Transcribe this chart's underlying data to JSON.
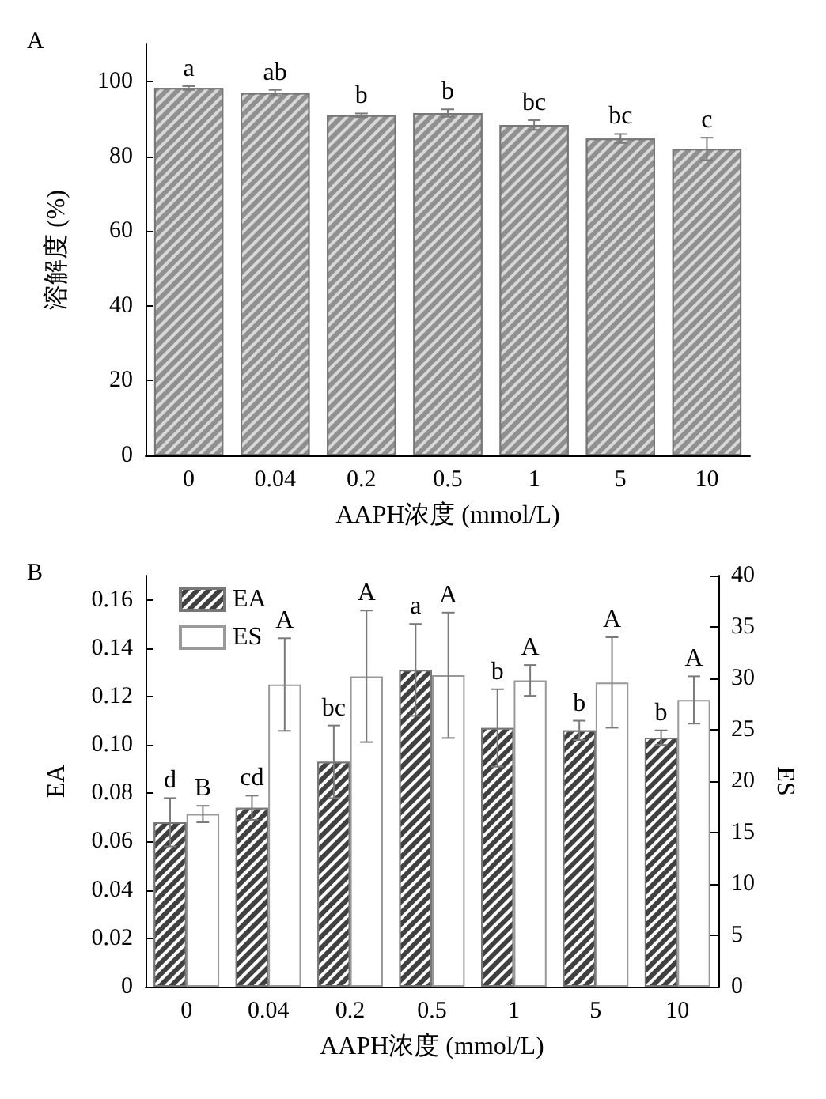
{
  "chart_data": [
    {
      "type": "bar",
      "title": "A",
      "xlabel": "AAPH浓度 (mmol/L)",
      "ylabel": "溶解度 (%)",
      "categories": [
        "0",
        "0.04",
        "0.2",
        "0.5",
        "1",
        "5",
        "10"
      ],
      "series": [
        {
          "color": "#909090",
          "values": [
            98.3,
            97,
            91,
            91.6,
            88.4,
            84.8,
            82
          ],
          "errors": [
            0.5,
            0.8,
            0.5,
            1.0,
            1.3,
            1.2,
            3.0
          ],
          "value_labels": [
            "a",
            "ab",
            "b",
            "b",
            "bc",
            "bc",
            "c"
          ]
        }
      ],
      "ylim": [
        0,
        110
      ],
      "yticks": [
        0,
        20,
        40,
        60,
        80,
        100
      ],
      "grid": false,
      "legend": false
    },
    {
      "type": "bar",
      "title": "B",
      "xlabel": "AAPH浓度 (mmol/L)",
      "ylabel": "EA",
      "y2label": "ES",
      "categories": [
        "0",
        "0.04",
        "0.2",
        "0.5",
        "1",
        "5",
        "10"
      ],
      "series": [
        {
          "name": "EA",
          "color": "#404040",
          "values": [
            0.068,
            0.074,
            0.093,
            0.131,
            0.107,
            0.106,
            0.103
          ],
          "errors": [
            0.01,
            0.005,
            0.015,
            0.019,
            0.016,
            0.004,
            0.003
          ],
          "value_labels": [
            "d",
            "cd",
            "bc",
            "a",
            "b",
            "b",
            "b"
          ]
        },
        {
          "name": "ES",
          "color": "#ffffff",
          "axis": "y2",
          "values": [
            16.8,
            29.4,
            30.2,
            30.3,
            29.8,
            29.6,
            27.9
          ],
          "errors": [
            0.8,
            4.5,
            6.4,
            6.1,
            1.5,
            4.4,
            2.3
          ],
          "value_labels": [
            "B",
            "A",
            "A",
            "A",
            "A",
            "A",
            "A"
          ]
        }
      ],
      "ylim": [
        0,
        0.17
      ],
      "yticks": [
        0,
        0.02,
        0.04,
        0.06,
        0.08,
        {
          "value": 0.1,
          "label": "0.10"
        },
        0.12,
        0.14,
        0.16
      ],
      "y2lim": [
        0,
        40
      ],
      "y2ticks": [
        0,
        5,
        10,
        15,
        20,
        25,
        30,
        35,
        40
      ],
      "grid": false,
      "legend": "top left"
    }
  ]
}
